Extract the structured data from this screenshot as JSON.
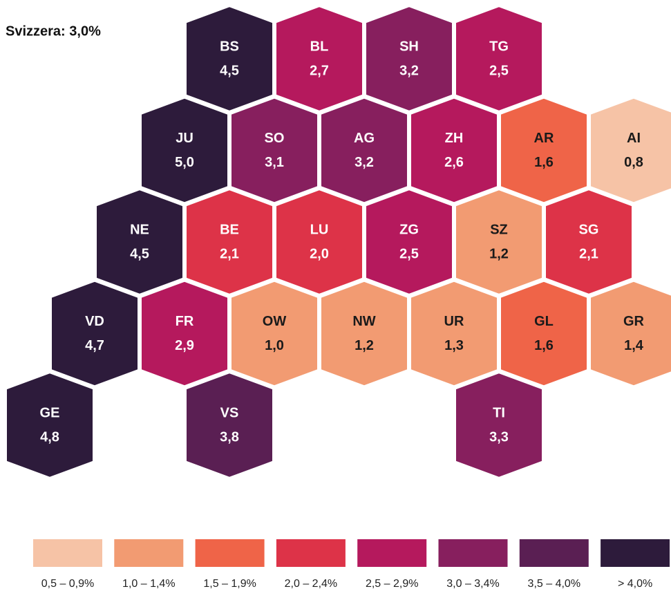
{
  "chart_data": {
    "type": "hexmap",
    "title": "Svizzera: 3,0%",
    "cantons": [
      {
        "code": "BS",
        "value": 4.5,
        "value_label": "4,5",
        "color": "#2d1b3b",
        "label_color": "#ffffff"
      },
      {
        "code": "BL",
        "value": 2.7,
        "value_label": "2,7",
        "color": "#b5195d",
        "label_color": "#ffffff"
      },
      {
        "code": "SH",
        "value": 3.2,
        "value_label": "3,2",
        "color": "#871f5e",
        "label_color": "#ffffff"
      },
      {
        "code": "TG",
        "value": 2.5,
        "value_label": "2,5",
        "color": "#b5195d",
        "label_color": "#ffffff"
      },
      {
        "code": "JU",
        "value": 5.0,
        "value_label": "5,0",
        "color": "#2d1b3b",
        "label_color": "#ffffff"
      },
      {
        "code": "SO",
        "value": 3.1,
        "value_label": "3,1",
        "color": "#871f5e",
        "label_color": "#ffffff"
      },
      {
        "code": "AG",
        "value": 3.2,
        "value_label": "3,2",
        "color": "#871f5e",
        "label_color": "#ffffff"
      },
      {
        "code": "ZH",
        "value": 2.6,
        "value_label": "2,6",
        "color": "#b5195d",
        "label_color": "#ffffff"
      },
      {
        "code": "AR",
        "value": 1.6,
        "value_label": "1,6",
        "color": "#ef6448",
        "label_color": "#1a1a1a"
      },
      {
        "code": "AI",
        "value": 0.8,
        "value_label": "0,8",
        "color": "#f6c3a6",
        "label_color": "#1a1a1a"
      },
      {
        "code": "NE",
        "value": 4.5,
        "value_label": "4,5",
        "color": "#2d1b3b",
        "label_color": "#ffffff"
      },
      {
        "code": "BE",
        "value": 2.1,
        "value_label": "2,1",
        "color": "#dd3348",
        "label_color": "#ffffff"
      },
      {
        "code": "LU",
        "value": 2.0,
        "value_label": "2,0",
        "color": "#dd3348",
        "label_color": "#ffffff"
      },
      {
        "code": "ZG",
        "value": 2.5,
        "value_label": "2,5",
        "color": "#b5195d",
        "label_color": "#ffffff"
      },
      {
        "code": "SZ",
        "value": 1.2,
        "value_label": "1,2",
        "color": "#f29b72",
        "label_color": "#1a1a1a"
      },
      {
        "code": "SG",
        "value": 2.1,
        "value_label": "2,1",
        "color": "#dd3348",
        "label_color": "#ffffff"
      },
      {
        "code": "VD",
        "value": 4.7,
        "value_label": "4,7",
        "color": "#2d1b3b",
        "label_color": "#ffffff"
      },
      {
        "code": "FR",
        "value": 2.9,
        "value_label": "2,9",
        "color": "#b5195d",
        "label_color": "#ffffff"
      },
      {
        "code": "OW",
        "value": 1.0,
        "value_label": "1,0",
        "color": "#f29b72",
        "label_color": "#1a1a1a"
      },
      {
        "code": "NW",
        "value": 1.2,
        "value_label": "1,2",
        "color": "#f29b72",
        "label_color": "#1a1a1a"
      },
      {
        "code": "UR",
        "value": 1.3,
        "value_label": "1,3",
        "color": "#f29b72",
        "label_color": "#1a1a1a"
      },
      {
        "code": "GL",
        "value": 1.6,
        "value_label": "1,6",
        "color": "#ef6448",
        "label_color": "#1a1a1a"
      },
      {
        "code": "GR",
        "value": 1.4,
        "value_label": "1,4",
        "color": "#f29b72",
        "label_color": "#1a1a1a"
      },
      {
        "code": "GE",
        "value": 4.8,
        "value_label": "4,8",
        "color": "#2d1b3b",
        "label_color": "#ffffff"
      },
      {
        "code": "VS",
        "value": 3.8,
        "value_label": "3,8",
        "color": "#5a1f53",
        "label_color": "#ffffff"
      },
      {
        "code": "TI",
        "value": 3.3,
        "value_label": "3,3",
        "color": "#871f5e",
        "label_color": "#ffffff"
      }
    ],
    "legend": [
      {
        "label": "0,5 – 0,9%",
        "color": "#f6c3a6"
      },
      {
        "label": "1,0 – 1,4%",
        "color": "#f29b72"
      },
      {
        "label": "1,5 – 1,9%",
        "color": "#ef6448"
      },
      {
        "label": "2,0 – 2,4%",
        "color": "#dd3348"
      },
      {
        "label": "2,5 – 2,9%",
        "color": "#b5195d"
      },
      {
        "label": "3,0 – 3,4%",
        "color": "#871f5e"
      },
      {
        "label": "3,5 – 4,0%",
        "color": "#5a1f53"
      },
      {
        "label": "> 4,0%",
        "color": "#2d1b3b"
      }
    ]
  }
}
